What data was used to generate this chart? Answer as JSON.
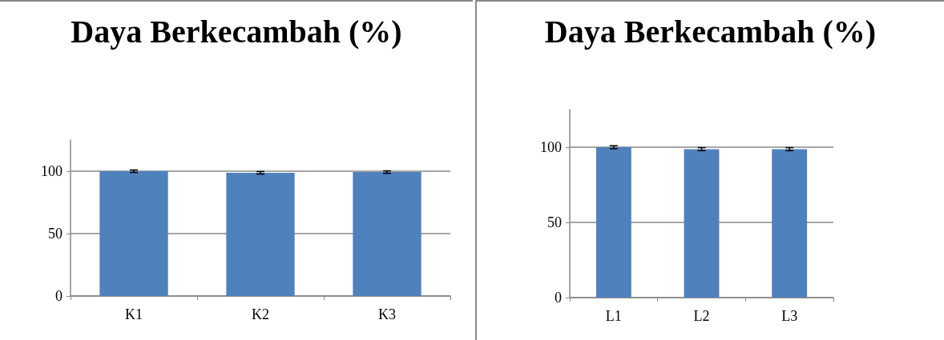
{
  "chart_data": [
    {
      "type": "bar",
      "title": "Daya Berkecambah (%)",
      "categories": [
        "K1",
        "K2",
        "K3"
      ],
      "values": [
        100,
        98.7,
        99.3
      ],
      "errors": [
        1,
        1,
        1
      ],
      "color": "#4f81bd",
      "ylim": [
        0,
        125
      ],
      "yticks": [
        0,
        50,
        100
      ],
      "grid": "y"
    },
    {
      "type": "bar",
      "title": "Daya Berkecambah (%)",
      "categories": [
        "L1",
        "L2",
        "L3"
      ],
      "values": [
        100,
        98.7,
        98.7
      ],
      "errors": [
        1,
        1,
        1
      ],
      "color": "#4f81bd",
      "ylim": [
        0,
        125
      ],
      "yticks": [
        0,
        50,
        100
      ],
      "grid": "y"
    }
  ]
}
